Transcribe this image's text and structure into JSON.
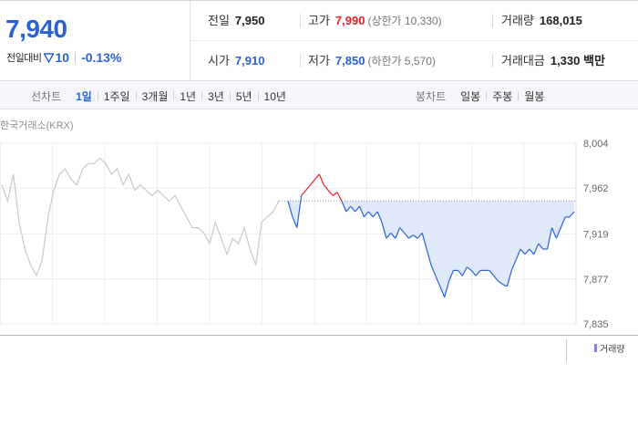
{
  "summary": {
    "current_price": "7,940",
    "change_label": "전일대비",
    "change_icon": "down-triangle-icon",
    "change_value": "10",
    "change_rate": "-0.13%",
    "colors": {
      "down": "#2a62d6",
      "up": "#e2222c"
    }
  },
  "stats": {
    "prev_close": {
      "label": "전일",
      "value": "7,950"
    },
    "high": {
      "label": "고가",
      "value": "7,990",
      "sub": "(상한가 10,330)"
    },
    "volume": {
      "label": "거래량",
      "value": "168,015"
    },
    "open": {
      "label": "시가",
      "value": "7,910"
    },
    "low": {
      "label": "저가",
      "value": "7,850",
      "sub": "(하한가 5,570)"
    },
    "trade_value": {
      "label": "거래대금",
      "value": "1,330 백만"
    }
  },
  "tabs": {
    "line_chart_label": "선차트",
    "line_chart_tabs": [
      "1일",
      "1주일",
      "3개월",
      "1년",
      "3년",
      "5년",
      "10년"
    ],
    "line_chart_active": "1일",
    "candle_chart_label": "봉차트",
    "candle_chart_tabs": [
      "일봉",
      "주봉",
      "월봉"
    ]
  },
  "chart": {
    "source": "한국거래소(KRX)",
    "volume_legend": "거래량"
  },
  "chart_data": {
    "type": "line",
    "xlabel": "",
    "ylabel": "",
    "y_ticks": [
      "8,004",
      "7,962",
      "7,919",
      "7,877",
      "7,835"
    ],
    "ylim": [
      7835,
      8004
    ],
    "reference_price": 7950,
    "grid": true,
    "series": [
      {
        "values": [
          7965,
          7950,
          7975,
          7930,
          7905,
          7890,
          7880,
          7895,
          7935,
          7960,
          7975,
          7980,
          7970,
          7965,
          7980,
          7985,
          7985,
          7990,
          7985,
          7975,
          7980,
          7965,
          7975,
          7960,
          7965,
          7960,
          7955,
          7960,
          7955,
          7950,
          7955,
          7945,
          7935,
          7925,
          7925,
          7920,
          7910,
          7930,
          7915,
          7900,
          7915,
          7910,
          7925,
          7905,
          7890,
          7930,
          7935,
          7940,
          7950
        ]
      },
      {
        "values": [
          7950,
          7935,
          7925,
          7955,
          7960,
          7965,
          7970,
          7975,
          7965,
          7960,
          7955,
          7958,
          7950,
          7940,
          7945,
          7940,
          7945,
          7935,
          7940,
          7935,
          7940,
          7930,
          7915,
          7920,
          7915,
          7925,
          7920,
          7915,
          7918,
          7915,
          7920,
          7905,
          7890,
          7880,
          7870,
          7860,
          7875,
          7885,
          7885,
          7880,
          7888,
          7885,
          7880,
          7885,
          7885,
          7885,
          7880,
          7875,
          7872,
          7870,
          7885,
          7895,
          7905,
          7900,
          7905,
          7900,
          7910,
          7905,
          7905,
          7925,
          7915,
          7925,
          7935,
          7935,
          7940
        ]
      }
    ]
  }
}
